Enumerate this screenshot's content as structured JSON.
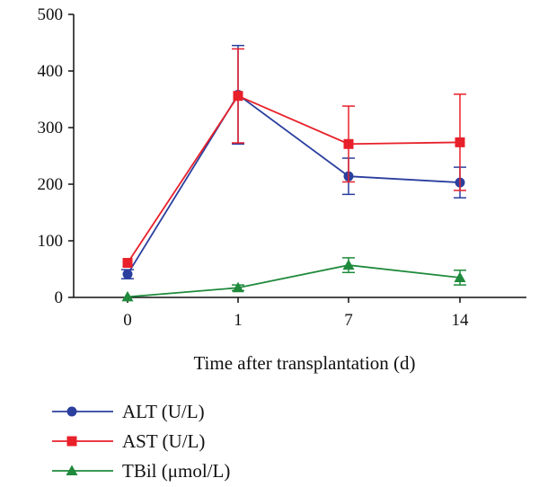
{
  "chart_data": {
    "type": "line",
    "categories": [
      "0",
      "1",
      "7",
      "14"
    ],
    "xlabel": "Time after transplantation (d)",
    "ylabel": "",
    "ylim": [
      0,
      500
    ],
    "yticks": [
      0,
      100,
      200,
      300,
      400,
      500
    ],
    "grid": false,
    "legend_position": "bottom-left",
    "series": [
      {
        "name": "ALT (U/L)",
        "color": "#2b3f9e",
        "marker": "circle",
        "values": [
          41,
          358,
          214,
          203
        ],
        "err_upper": [
          8,
          87,
          32,
          27
        ],
        "err_lower": [
          8,
          87,
          32,
          27
        ]
      },
      {
        "name": "AST (U/L)",
        "color": "#e8202a",
        "marker": "square",
        "values": [
          61,
          356,
          271,
          274
        ],
        "err_upper": [
          0,
          83,
          67,
          85
        ],
        "err_lower": [
          0,
          83,
          67,
          85
        ]
      },
      {
        "name": "TBil (μmol/L)",
        "color": "#1f8a3c",
        "marker": "triangle",
        "values": [
          1,
          17,
          57,
          35
        ],
        "err_upper": [
          0,
          5,
          13,
          13
        ],
        "err_lower": [
          0,
          5,
          13,
          13
        ]
      }
    ]
  }
}
